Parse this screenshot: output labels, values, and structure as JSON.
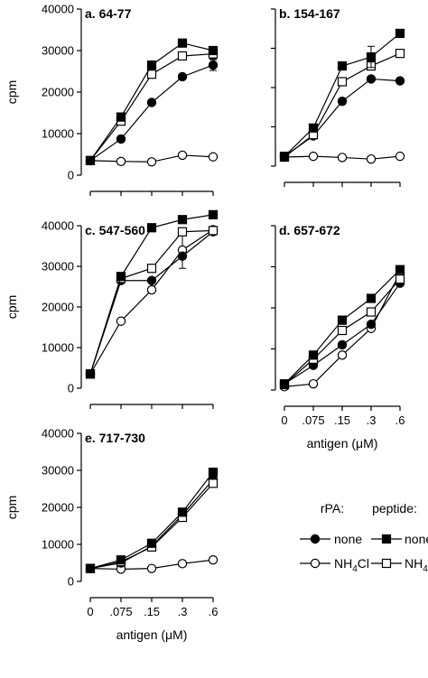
{
  "chart_data": [
    {
      "type": "line",
      "title": "a. 64-77",
      "ylabel": "cpm",
      "xlabel": "",
      "x": [
        0,
        0.075,
        0.15,
        0.3,
        0.6
      ],
      "xticks": [
        "0",
        ".075",
        ".15",
        ".3",
        ".6"
      ],
      "show_xticks": false,
      "ylim": [
        0,
        40000
      ],
      "yticks": [
        0,
        10000,
        20000,
        30000,
        40000
      ],
      "show_yticks": true,
      "series": [
        {
          "key": "rpa_none",
          "values": [
            3500,
            8700,
            17500,
            23700,
            26500
          ],
          "error": [
            null,
            null,
            null,
            null,
            1300
          ]
        },
        {
          "key": "rpa_nh4cl",
          "values": [
            3500,
            3300,
            3200,
            4800,
            4400
          ]
        },
        {
          "key": "pep_none",
          "values": [
            3500,
            14000,
            26500,
            31800,
            30000
          ]
        },
        {
          "key": "pep_nh4cl",
          "values": [
            3500,
            13000,
            24300,
            28700,
            29200
          ],
          "error": [
            null,
            null,
            null,
            null,
            1200
          ]
        }
      ]
    },
    {
      "type": "line",
      "title": "b. 154-167",
      "ylabel": "",
      "xlabel": "",
      "x": [
        0,
        0.075,
        0.15,
        0.3,
        0.6
      ],
      "xticks": [
        "0",
        ".075",
        ".15",
        ".3",
        ".6"
      ],
      "show_xticks": false,
      "ylim": [
        0,
        40000
      ],
      "yticks": [
        0,
        10000,
        20000,
        30000,
        40000
      ],
      "show_yticks": false,
      "series": [
        {
          "key": "rpa_none",
          "values": [
            2500,
            7700,
            16500,
            22200,
            21700
          ]
        },
        {
          "key": "rpa_nh4cl",
          "values": [
            2300,
            2500,
            2200,
            1800,
            2500
          ]
        },
        {
          "key": "pep_none",
          "values": [
            2500,
            9700,
            25500,
            27800,
            33800
          ],
          "error": [
            null,
            null,
            null,
            2700,
            null
          ]
        },
        {
          "key": "pep_nh4cl",
          "values": [
            2300,
            8000,
            21500,
            25500,
            28700
          ]
        }
      ]
    },
    {
      "type": "line",
      "title": "c. 547-560",
      "ylabel": "cpm",
      "xlabel": "",
      "x": [
        0,
        0.075,
        0.15,
        0.3,
        0.6
      ],
      "xticks": [
        "0",
        ".075",
        ".15",
        ".3",
        ".6"
      ],
      "show_xticks": false,
      "ylim": [
        0,
        40000
      ],
      "yticks": [
        0,
        10000,
        20000,
        30000,
        40000
      ],
      "show_yticks": true,
      "series": [
        {
          "key": "rpa_none",
          "values": [
            3500,
            26500,
            26500,
            32500,
            38500
          ]
        },
        {
          "key": "rpa_nh4cl",
          "values": [
            3500,
            16500,
            24200,
            34000,
            39000
          ],
          "error": [
            null,
            null,
            null,
            4500,
            null
          ]
        },
        {
          "key": "pep_none",
          "values": [
            3500,
            27500,
            39500,
            41500,
            42700
          ]
        },
        {
          "key": "pep_nh4cl",
          "values": [
            3500,
            27000,
            29500,
            38500,
            38800
          ]
        }
      ]
    },
    {
      "type": "line",
      "title": "d. 657-672",
      "ylabel": "",
      "xlabel": "antigen (μM)",
      "x": [
        0,
        0.075,
        0.15,
        0.3,
        0.6
      ],
      "xticks": [
        "0",
        ".075",
        ".15",
        ".3",
        ".6"
      ],
      "show_xticks": true,
      "ylim": [
        0,
        40000
      ],
      "yticks": [
        0,
        10000,
        20000,
        30000,
        40000
      ],
      "show_yticks": false,
      "series": [
        {
          "key": "rpa_none",
          "values": [
            1500,
            6000,
            11000,
            16000,
            26000
          ]
        },
        {
          "key": "rpa_nh4cl",
          "values": [
            800,
            1500,
            8500,
            15000,
            28500
          ]
        },
        {
          "key": "pep_none",
          "values": [
            1500,
            8500,
            17000,
            22300,
            29300
          ]
        },
        {
          "key": "pep_nh4cl",
          "values": [
            1300,
            7500,
            14500,
            19000,
            27000
          ]
        }
      ]
    },
    {
      "type": "line",
      "title": "e. 717-730",
      "ylabel": "cpm",
      "xlabel": "antigen (μM)",
      "x": [
        0,
        0.075,
        0.15,
        0.3,
        0.6
      ],
      "xticks": [
        "0",
        ".075",
        ".15",
        ".3",
        ".6"
      ],
      "show_xticks": true,
      "ylim": [
        0,
        40000
      ],
      "yticks": [
        0,
        10000,
        20000,
        30000,
        40000
      ],
      "show_yticks": true,
      "series": [
        {
          "key": "rpa_none",
          "values": [
            3500,
            5000,
            9500,
            18000,
            27500
          ]
        },
        {
          "key": "rpa_nh4cl",
          "values": [
            3500,
            3300,
            3500,
            4800,
            5800
          ]
        },
        {
          "key": "pep_none",
          "values": [
            3500,
            5800,
            10300,
            18700,
            29500
          ]
        },
        {
          "key": "pep_nh4cl",
          "values": [
            3500,
            5300,
            9300,
            17300,
            26500
          ]
        }
      ]
    }
  ],
  "legend": {
    "placement": "bottom-right",
    "group_rpa": "rPA:",
    "group_peptide": "peptide:",
    "none_label": "none",
    "nh4cl_prefix": "NH",
    "nh4cl_sub": "4",
    "nh4cl_suffix": "Cl"
  },
  "styles": {
    "rpa_none": {
      "marker": "circle",
      "fill": "#000000"
    },
    "rpa_nh4cl": {
      "marker": "circle",
      "fill": "#ffffff"
    },
    "pep_none": {
      "marker": "square",
      "fill": "#000000"
    },
    "pep_nh4cl": {
      "marker": "square",
      "fill": "#ffffff"
    }
  }
}
